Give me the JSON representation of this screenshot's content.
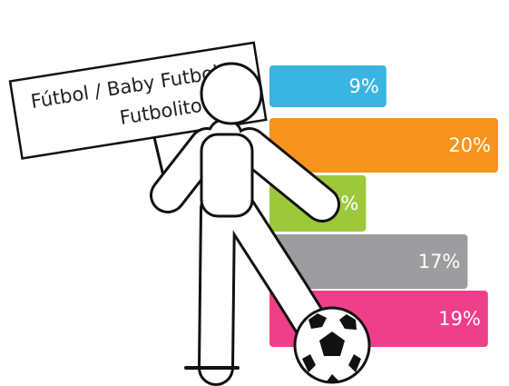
{
  "chart_data": {
    "type": "bar",
    "orientation": "horizontal",
    "title": "Fútbol / Baby Futbol / Futbolito",
    "values": [
      9,
      20,
      7,
      17,
      19
    ],
    "value_labels": [
      "9%",
      "20%",
      "7%",
      "17%",
      "19%"
    ],
    "colors": [
      "#3ab4e0",
      "#f7941d",
      "#9dc83c",
      "#9d9c9e",
      "#ef3f8a"
    ]
  }
}
